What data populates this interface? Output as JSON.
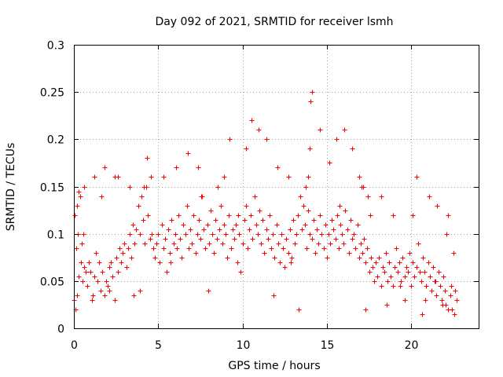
{
  "chart_data": {
    "type": "scatter",
    "title": "Day 092 of 2021, SRMTID for receiver lsmh",
    "xlabel": "GPS time / hours",
    "ylabel": "SRMTID / TECUs",
    "xlim": [
      0,
      24
    ],
    "ylim": [
      0,
      0.3
    ],
    "xticks": [
      0,
      5,
      10,
      15,
      20
    ],
    "yticks": [
      0,
      0.05,
      0.1,
      0.15,
      0.2,
      0.25,
      0.3
    ],
    "xtick_labels": [
      "0",
      "5",
      "10",
      "15",
      "20"
    ],
    "ytick_labels": [
      "0",
      "0.05",
      "0.1",
      "0.15",
      "0.2",
      "0.25",
      "0.3"
    ],
    "grid": true,
    "marker": "plus",
    "color": "#ff0000",
    "series": [
      {
        "name": "SRMTID",
        "x": [
          0.0,
          0.1,
          0.15,
          0.2,
          0.25,
          0.3,
          0.35,
          0.4,
          0.45,
          0.5,
          0.6,
          0.7,
          0.8,
          0.9,
          1.0,
          1.1,
          1.2,
          1.3,
          1.4,
          1.5,
          1.6,
          1.7,
          1.8,
          1.9,
          2.0,
          2.1,
          2.2,
          2.3,
          2.4,
          2.5,
          2.6,
          2.7,
          2.8,
          2.9,
          3.0,
          3.1,
          3.2,
          3.3,
          3.4,
          3.5,
          3.6,
          3.7,
          3.8,
          3.9,
          4.0,
          4.1,
          4.2,
          4.3,
          4.4,
          4.5,
          4.6,
          4.7,
          4.8,
          4.9,
          5.0,
          5.1,
          5.2,
          5.3,
          5.4,
          5.5,
          5.6,
          5.7,
          5.8,
          5.9,
          6.0,
          6.1,
          6.2,
          6.3,
          6.4,
          6.5,
          6.6,
          6.7,
          6.8,
          6.9,
          7.0,
          7.1,
          7.2,
          7.3,
          7.4,
          7.5,
          7.6,
          7.7,
          7.8,
          7.9,
          8.0,
          8.1,
          8.2,
          8.3,
          8.4,
          8.5,
          8.6,
          8.7,
          8.8,
          8.9,
          9.0,
          9.1,
          9.2,
          9.3,
          9.4,
          9.5,
          9.6,
          9.7,
          9.8,
          9.9,
          10.0,
          10.1,
          10.2,
          10.3,
          10.4,
          10.5,
          10.6,
          10.7,
          10.8,
          10.9,
          11.0,
          11.1,
          11.2,
          11.3,
          11.4,
          11.5,
          11.6,
          11.7,
          11.8,
          11.9,
          12.0,
          12.1,
          12.2,
          12.3,
          12.4,
          12.5,
          12.6,
          12.7,
          12.8,
          12.9,
          13.0,
          13.1,
          13.2,
          13.3,
          13.4,
          13.5,
          13.6,
          13.7,
          13.8,
          13.9,
          14.0,
          14.1,
          14.2,
          14.3,
          14.4,
          14.5,
          14.6,
          14.7,
          14.8,
          14.9,
          15.0,
          15.1,
          15.2,
          15.3,
          15.4,
          15.5,
          15.6,
          15.7,
          15.8,
          15.9,
          16.0,
          16.1,
          16.2,
          16.3,
          16.4,
          16.5,
          16.6,
          16.7,
          16.8,
          16.9,
          17.0,
          17.1,
          17.2,
          17.3,
          17.4,
          17.5,
          17.6,
          17.7,
          17.8,
          17.9,
          18.0,
          18.1,
          18.2,
          18.3,
          18.4,
          18.5,
          18.6,
          18.7,
          18.8,
          18.9,
          19.0,
          19.1,
          19.2,
          19.3,
          19.4,
          19.5,
          19.6,
          19.7,
          19.8,
          19.9,
          20.0,
          20.1,
          20.2,
          20.3,
          20.4,
          20.5,
          20.6,
          20.7,
          20.8,
          20.9,
          21.0,
          21.1,
          21.2,
          21.3,
          21.4,
          21.5,
          21.6,
          21.7,
          21.8,
          21.9,
          22.0,
          22.1,
          22.2,
          22.3,
          22.4,
          22.5,
          22.6,
          22.7,
          0.05,
          0.3,
          0.6,
          1.2,
          1.8,
          2.1,
          2.6,
          3.3,
          3.9,
          4.15,
          4.35,
          4.55,
          5.3,
          6.05,
          6.75,
          7.35,
          7.95,
          8.55,
          8.9,
          9.25,
          10.2,
          10.55,
          10.95,
          11.4,
          12.05,
          12.7,
          13.35,
          13.75,
          13.9,
          14.0,
          14.05,
          14.1,
          14.6,
          15.15,
          15.55,
          16.05,
          16.5,
          16.9,
          17.05,
          17.15,
          17.3,
          17.45,
          17.55,
          18.2,
          18.9,
          19.6,
          20.1,
          20.3,
          20.65,
          21.05,
          21.45,
          21.55,
          21.85,
          22.2,
          22.35,
          22.55,
          0.2,
          0.55,
          1.05,
          1.65,
          2.4,
          3.55,
          5.75,
          7.55,
          9.75,
          11.85,
          12.85,
          15.75,
          18.55,
          19.35,
          20.85,
          22.05
        ],
        "y": [
          0.03,
          0.02,
          0.085,
          0.13,
          0.1,
          0.055,
          0.14,
          0.07,
          0.09,
          0.05,
          0.065,
          0.06,
          0.045,
          0.07,
          0.06,
          0.035,
          0.055,
          0.08,
          0.05,
          0.07,
          0.04,
          0.06,
          0.035,
          0.05,
          0.045,
          0.065,
          0.07,
          0.055,
          0.03,
          0.075,
          0.06,
          0.085,
          0.07,
          0.08,
          0.09,
          0.065,
          0.085,
          0.1,
          0.075,
          0.11,
          0.09,
          0.105,
          0.13,
          0.1,
          0.14,
          0.115,
          0.09,
          0.15,
          0.12,
          0.095,
          0.1,
          0.085,
          0.075,
          0.09,
          0.1,
          0.07,
          0.11,
          0.085,
          0.095,
          0.06,
          0.105,
          0.08,
          0.115,
          0.09,
          0.1,
          0.085,
          0.12,
          0.095,
          0.075,
          0.11,
          0.1,
          0.13,
          0.085,
          0.105,
          0.09,
          0.12,
          0.08,
          0.1,
          0.115,
          0.095,
          0.14,
          0.105,
          0.085,
          0.11,
          0.09,
          0.125,
          0.1,
          0.08,
          0.115,
          0.095,
          0.105,
          0.13,
          0.09,
          0.11,
          0.1,
          0.075,
          0.12,
          0.085,
          0.105,
          0.095,
          0.11,
          0.07,
          0.1,
          0.06,
          0.09,
          0.115,
          0.13,
          0.085,
          0.105,
          0.12,
          0.095,
          0.14,
          0.11,
          0.1,
          0.125,
          0.09,
          0.115,
          0.08,
          0.105,
          0.095,
          0.12,
          0.085,
          0.1,
          0.075,
          0.11,
          0.09,
          0.07,
          0.1,
          0.085,
          0.065,
          0.095,
          0.08,
          0.105,
          0.075,
          0.115,
          0.09,
          0.1,
          0.12,
          0.14,
          0.105,
          0.13,
          0.11,
          0.085,
          0.125,
          0.1,
          0.095,
          0.115,
          0.08,
          0.105,
          0.09,
          0.12,
          0.1,
          0.085,
          0.11,
          0.075,
          0.1,
          0.09,
          0.115,
          0.105,
          0.095,
          0.12,
          0.085,
          0.11,
          0.1,
          0.09,
          0.125,
          0.105,
          0.08,
          0.115,
          0.095,
          0.1,
          0.085,
          0.11,
          0.075,
          0.09,
          0.08,
          0.095,
          0.07,
          0.085,
          0.06,
          0.075,
          0.065,
          0.05,
          0.07,
          0.055,
          0.075,
          0.045,
          0.065,
          0.06,
          0.08,
          0.05,
          0.07,
          0.055,
          0.045,
          0.065,
          0.085,
          0.06,
          0.07,
          0.05,
          0.075,
          0.055,
          0.065,
          0.06,
          0.08,
          0.045,
          0.07,
          0.055,
          0.065,
          0.09,
          0.06,
          0.05,
          0.075,
          0.06,
          0.045,
          0.07,
          0.055,
          0.04,
          0.065,
          0.05,
          0.035,
          0.06,
          0.045,
          0.03,
          0.055,
          0.04,
          0.1,
          0.12,
          0.035,
          0.02,
          0.08,
          0.04,
          0.03,
          0.12,
          0.145,
          0.15,
          0.16,
          0.17,
          0.04,
          0.16,
          0.15,
          0.04,
          0.15,
          0.18,
          0.16,
          0.16,
          0.17,
          0.185,
          0.17,
          0.04,
          0.15,
          0.16,
          0.2,
          0.19,
          0.22,
          0.21,
          0.2,
          0.17,
          0.16,
          0.02,
          0.15,
          0.16,
          0.19,
          0.24,
          0.25,
          0.21,
          0.175,
          0.2,
          0.21,
          0.19,
          0.16,
          0.15,
          0.15,
          0.02,
          0.14,
          0.12,
          0.14,
          0.12,
          0.03,
          0.12,
          0.16,
          0.015,
          0.14,
          0.05,
          0.13,
          0.025,
          0.02,
          0.045,
          0.015,
          0.035,
          0.1,
          0.03,
          0.14,
          0.16,
          0.035,
          0.07,
          0.14,
          0.12,
          0.035,
          0.07,
          0.13,
          0.025,
          0.045,
          0.03,
          0.025
        ]
      }
    ]
  }
}
